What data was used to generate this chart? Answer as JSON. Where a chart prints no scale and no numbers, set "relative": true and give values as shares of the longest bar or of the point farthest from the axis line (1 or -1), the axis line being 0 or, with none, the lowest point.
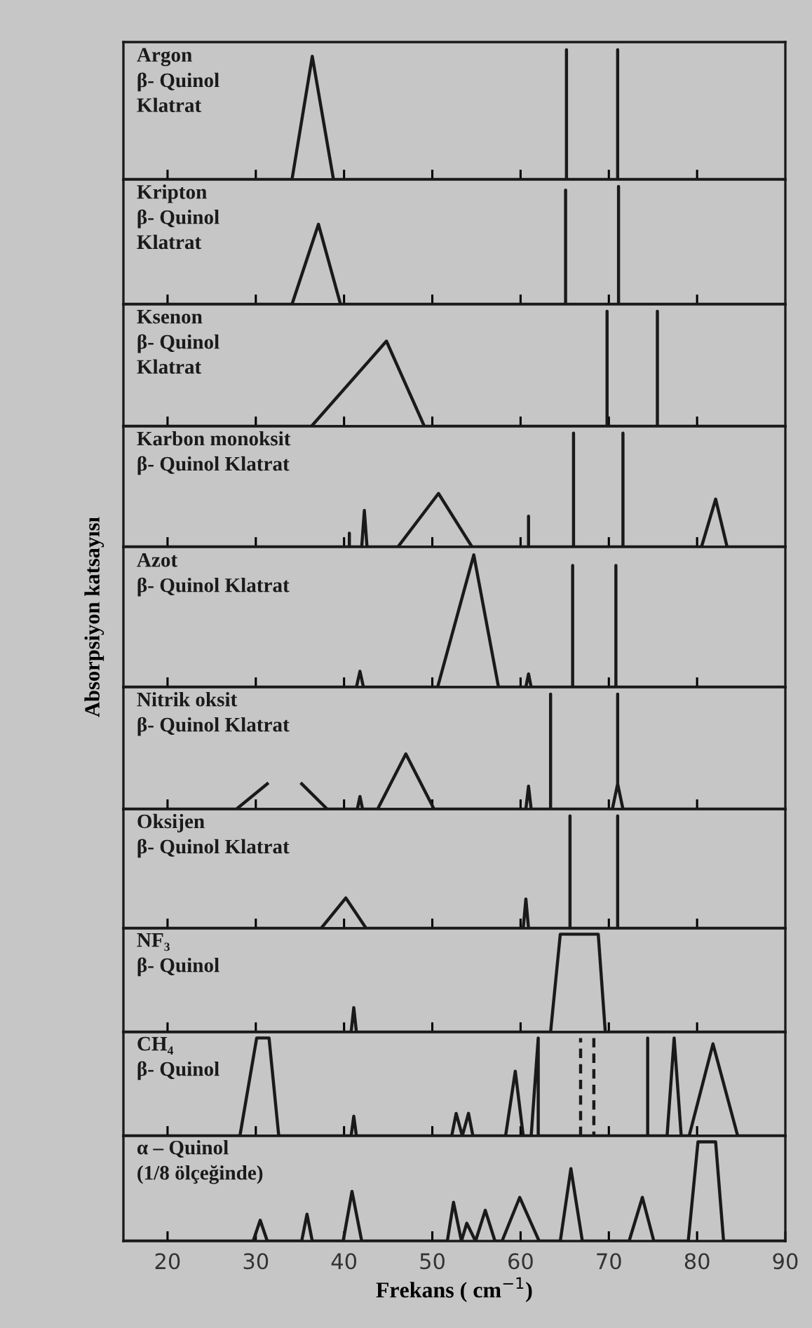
{
  "chart_data": [
    {
      "type": "line",
      "relative": true,
      "title": "Argon\nβ- Quinol\nKlatrat",
      "xlim": [
        15,
        90
      ],
      "xticks": [
        20,
        30,
        40,
        50,
        60,
        70,
        80
      ],
      "tick_labels": false,
      "series": [
        {
          "color": "#1a1a1a",
          "x": [
            15,
            34.1,
            36.4,
            38.8,
            65.2,
            65.2,
            65.2,
            71,
            71,
            71,
            90
          ],
          "values": [
            0,
            0,
            0.95,
            0,
            0,
            1,
            0,
            0,
            1,
            0,
            0
          ]
        }
      ]
    },
    {
      "type": "line",
      "relative": true,
      "title": "Kripton\nβ- Quinol\nKlatrat",
      "xlim": [
        15,
        90
      ],
      "xticks": [
        20,
        30,
        40,
        50,
        60,
        70,
        80
      ],
      "tick_labels": false,
      "series": [
        {
          "color": "#1a1a1a",
          "x": [
            15,
            34.1,
            37.1,
            39.6,
            65.1,
            65.1,
            65.1,
            71.1,
            71.1,
            71.1,
            90
          ],
          "values": [
            0,
            0,
            0.68,
            0,
            0,
            0.97,
            0,
            0,
            1,
            0,
            0
          ]
        }
      ]
    },
    {
      "type": "line",
      "relative": true,
      "title": "Ksenon\nβ- Quinol\nKlatrat",
      "xlim": [
        15,
        90
      ],
      "xticks": [
        20,
        30,
        40,
        50,
        60,
        70,
        80
      ],
      "tick_labels": false,
      "series": [
        {
          "color": "#1a1a1a",
          "x": [
            15,
            36.3,
            44.8,
            49.1,
            69.8,
            69.8,
            69.8,
            75.5,
            75.5,
            75.5,
            90
          ],
          "values": [
            0,
            0,
            0.74,
            0,
            0,
            1,
            0,
            0,
            1,
            0,
            0
          ]
        }
      ]
    },
    {
      "type": "line",
      "relative": true,
      "title": "Karbon monoksit\nβ- Quinol Klatrat",
      "xlim": [
        15,
        90
      ],
      "xticks": [
        20,
        30,
        40,
        50,
        60,
        70,
        80
      ],
      "tick_labels": false,
      "series": [
        {
          "color": "#1a1a1a",
          "x": [
            15,
            40.6,
            40.6,
            40.6,
            42.0,
            42.3,
            42.6,
            46.1,
            50.7,
            54.5,
            60.9,
            60.9,
            60.9,
            66.0,
            66.0,
            66.0,
            71.6,
            71.6,
            71.6,
            80.5,
            82.1,
            83.4,
            90
          ],
          "values": [
            0,
            0,
            0.12,
            0,
            0,
            0.32,
            0,
            0,
            0.47,
            0,
            0,
            0.27,
            0,
            0,
            1,
            0,
            0,
            1,
            0,
            0,
            0.42,
            0,
            0
          ]
        }
      ]
    },
    {
      "type": "line",
      "relative": true,
      "title": "Azot\nβ- Quinol Klatrat",
      "ylabel": "Absorpsiyon katsayısı",
      "xlim": [
        15,
        90
      ],
      "xticks": [
        20,
        30,
        40,
        50,
        60,
        70,
        80
      ],
      "tick_labels": false,
      "series": [
        {
          "color": "#1a1a1a",
          "x": [
            15,
            41.4,
            41.8,
            42.2,
            50.6,
            54.7,
            57.5,
            60.6,
            60.9,
            61.2,
            65.9,
            65.9,
            65.9,
            70.8,
            70.8,
            70.8,
            90
          ],
          "values": [
            0,
            0,
            0.12,
            0,
            0,
            1,
            0,
            0,
            0.1,
            0,
            0,
            0.92,
            0,
            0,
            0.92,
            0,
            0
          ]
        }
      ]
    },
    {
      "type": "line",
      "relative": true,
      "title": "Nitrik oksit\nβ- Quinol Klatrat",
      "xlim": [
        15,
        90
      ],
      "xticks": [
        20,
        30,
        40,
        50,
        60,
        70,
        80
      ],
      "tick_labels": false,
      "series": [
        {
          "color": "#1a1a1a",
          "x": [
            15,
            27.8,
            31.3
          ],
          "values": [
            0,
            0,
            0.22
          ]
        },
        {
          "color": "#1a1a1a",
          "x": [
            35.2,
            38.1,
            41.5,
            41.8,
            42.1,
            43.8,
            47.0,
            50.2,
            60.6,
            60.9,
            61.2,
            63.4,
            63.4,
            63.4,
            70.4,
            71.0,
            71.0,
            71.0,
            71.6,
            90
          ],
          "values": [
            0.22,
            0,
            0,
            0.11,
            0,
            0,
            0.48,
            0,
            0,
            0.2,
            0,
            0,
            1,
            0,
            0,
            0.22,
            1,
            0.22,
            0,
            0
          ]
        }
      ]
    },
    {
      "type": "line",
      "relative": true,
      "title": "Oksijen\nβ- Quinol Klatrat",
      "xlim": [
        15,
        90
      ],
      "xticks": [
        20,
        30,
        40,
        50,
        60,
        70,
        80
      ],
      "tick_labels": false,
      "series": [
        {
          "color": "#1a1a1a",
          "x": [
            15,
            37.4,
            40.2,
            42.5,
            60.3,
            60.6,
            60.9,
            65.6,
            65.6,
            65.6,
            71.0,
            71.0,
            71.0,
            90
          ],
          "values": [
            0,
            0,
            0.27,
            0,
            0,
            0.26,
            0,
            0,
            1,
            0,
            0,
            1,
            0,
            0
          ]
        }
      ]
    },
    {
      "type": "line",
      "relative": true,
      "title": "NF₃\nβ- Quinol",
      "xlim": [
        15,
        90
      ],
      "xticks": [
        20,
        30,
        40,
        50,
        60,
        70,
        80
      ],
      "tick_labels": false,
      "series": [
        {
          "color": "#1a1a1a",
          "x": [
            15,
            40.8,
            41.1,
            41.4,
            63.4,
            64.5,
            68.8,
            69.6,
            90
          ],
          "values": [
            0,
            0,
            0.25,
            0,
            0,
            1,
            1,
            0,
            0
          ]
        }
      ]
    },
    {
      "type": "line",
      "relative": true,
      "title": "CH₄\nβ- Quinol",
      "xlim": [
        15,
        90
      ],
      "xticks": [
        20,
        30,
        40,
        50,
        60,
        70,
        80
      ],
      "tick_labels": false,
      "series": [
        {
          "color": "#1a1a1a",
          "x": [
            15,
            28.2,
            30.1,
            31.5,
            32.6,
            40.8,
            41.1,
            41.4,
            52.2,
            52.7,
            53.4,
            54.1,
            54.6,
            58.3,
            59.4,
            60.3,
            61.2,
            62.0,
            62.0,
            74.4,
            74.4,
            74.4,
            76.6,
            77.4,
            78.2,
            79.1,
            81.8,
            84.6,
            90
          ],
          "values": [
            0,
            0,
            1,
            1,
            0,
            0,
            0.2,
            0,
            0,
            0.23,
            0,
            0.23,
            0,
            0,
            0.66,
            0,
            0,
            1,
            0,
            0,
            1,
            0,
            0,
            1,
            0,
            0,
            0.94,
            0,
            0
          ]
        },
        {
          "color": "#1a1a1a",
          "line_style": "dashed",
          "x": [
            66.8,
            66.8,
            67.5,
            68.3,
            68.3
          ],
          "values": [
            0,
            1,
            null,
            1,
            0
          ]
        }
      ]
    },
    {
      "type": "line",
      "relative": true,
      "title": "α – Quinol\n(1/8 ölçeğinde)",
      "xlabel": "Frekans ( cm$^{−1}$)",
      "xlim": [
        15,
        90
      ],
      "xticks": [
        20,
        30,
        40,
        50,
        60,
        70,
        80,
        90
      ],
      "tick_labels": "x",
      "series": [
        {
          "color": "#1a1a1a",
          "x": [
            15,
            29.7,
            30.5,
            31.3,
            35.2,
            35.8,
            36.4,
            39.9,
            40.9,
            42.0,
            51.7,
            52.4,
            53.3,
            53.9,
            54.9,
            56.0,
            57.1,
            57.9,
            59.9,
            62.1,
            64.5,
            65.7,
            67.0,
            72.3,
            73.8,
            75.1,
            79.0,
            80.1,
            82.1,
            83.0,
            90
          ],
          "values": [
            0,
            0,
            0.21,
            0,
            0,
            0.27,
            0,
            0,
            0.5,
            0,
            0,
            0.39,
            0,
            0.18,
            0,
            0.31,
            0,
            0,
            0.44,
            0,
            0,
            0.73,
            0,
            0,
            0.44,
            0,
            0,
            1,
            1,
            0,
            0
          ]
        }
      ]
    }
  ]
}
